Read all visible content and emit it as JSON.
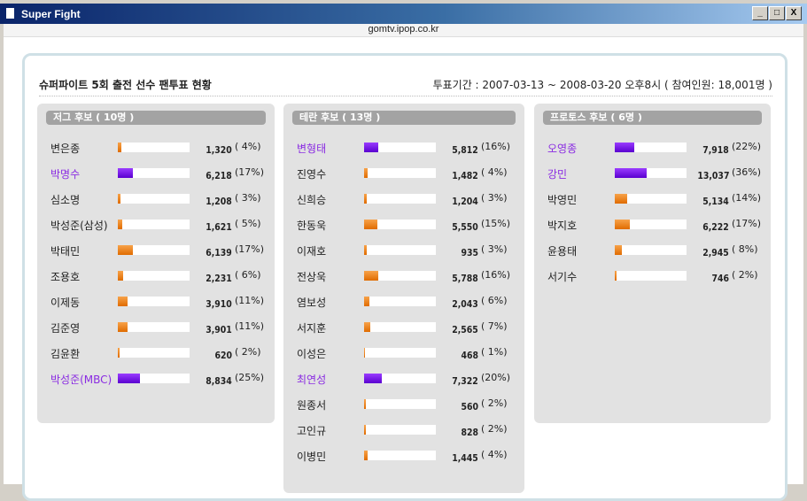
{
  "window": {
    "title": "Super Fight",
    "address": "gomtv.ipop.co.kr",
    "controls": [
      "_",
      "□",
      "X"
    ]
  },
  "heading": "슈퍼파이트 5회 출전 선수 팬투표 현황",
  "period": "투표기간 : 2007-03-13 ~ 2008-03-20 오후8시 ( 참여인원: 18,001명 )",
  "colors": {
    "highlight": "#8a2be2",
    "normal_bar": "#f08a20",
    "header_bg": "#a3a3a3"
  },
  "groups": [
    {
      "title": "저그 후보 ( 10명 )",
      "candidates": [
        {
          "name": "변은종",
          "votes": "1,320",
          "pct": 4,
          "pct_label": "( 4%)",
          "highlight": false
        },
        {
          "name": "박명수",
          "votes": "6,218",
          "pct": 17,
          "pct_label": "(17%)",
          "highlight": true
        },
        {
          "name": "심소명",
          "votes": "1,208",
          "pct": 3,
          "pct_label": "( 3%)",
          "highlight": false
        },
        {
          "name": "박성준(삼성)",
          "votes": "1,621",
          "pct": 5,
          "pct_label": "( 5%)",
          "highlight": false
        },
        {
          "name": "박태민",
          "votes": "6,139",
          "pct": 17,
          "pct_label": "(17%)",
          "highlight": false
        },
        {
          "name": "조용호",
          "votes": "2,231",
          "pct": 6,
          "pct_label": "( 6%)",
          "highlight": false
        },
        {
          "name": "이제동",
          "votes": "3,910",
          "pct": 11,
          "pct_label": "(11%)",
          "highlight": false
        },
        {
          "name": "김준영",
          "votes": "3,901",
          "pct": 11,
          "pct_label": "(11%)",
          "highlight": false
        },
        {
          "name": "김윤환",
          "votes": "620",
          "pct": 2,
          "pct_label": "( 2%)",
          "highlight": false
        },
        {
          "name": "박성준(MBC)",
          "votes": "8,834",
          "pct": 25,
          "pct_label": "(25%)",
          "highlight": true
        }
      ]
    },
    {
      "title": "테란 후보 ( 13명 )",
      "candidates": [
        {
          "name": "변형태",
          "votes": "5,812",
          "pct": 16,
          "pct_label": "(16%)",
          "highlight": true
        },
        {
          "name": "진영수",
          "votes": "1,482",
          "pct": 4,
          "pct_label": "( 4%)",
          "highlight": false
        },
        {
          "name": "신희승",
          "votes": "1,204",
          "pct": 3,
          "pct_label": "( 3%)",
          "highlight": false
        },
        {
          "name": "한동욱",
          "votes": "5,550",
          "pct": 15,
          "pct_label": "(15%)",
          "highlight": false
        },
        {
          "name": "이재호",
          "votes": "935",
          "pct": 3,
          "pct_label": "( 3%)",
          "highlight": false
        },
        {
          "name": "전상욱",
          "votes": "5,788",
          "pct": 16,
          "pct_label": "(16%)",
          "highlight": false
        },
        {
          "name": "염보성",
          "votes": "2,043",
          "pct": 6,
          "pct_label": "( 6%)",
          "highlight": false
        },
        {
          "name": "서지훈",
          "votes": "2,565",
          "pct": 7,
          "pct_label": "( 7%)",
          "highlight": false
        },
        {
          "name": "이성은",
          "votes": "468",
          "pct": 1,
          "pct_label": "( 1%)",
          "highlight": false
        },
        {
          "name": "최연성",
          "votes": "7,322",
          "pct": 20,
          "pct_label": "(20%)",
          "highlight": true
        },
        {
          "name": "원종서",
          "votes": "560",
          "pct": 2,
          "pct_label": "( 2%)",
          "highlight": false
        },
        {
          "name": "고인규",
          "votes": "828",
          "pct": 2,
          "pct_label": "( 2%)",
          "highlight": false
        },
        {
          "name": "이병민",
          "votes": "1,445",
          "pct": 4,
          "pct_label": "( 4%)",
          "highlight": false
        }
      ]
    },
    {
      "title": "프로토스 후보 ( 6명 )",
      "candidates": [
        {
          "name": "오영종",
          "votes": "7,918",
          "pct": 22,
          "pct_label": "(22%)",
          "highlight": true
        },
        {
          "name": "강민",
          "votes": "13,037",
          "pct": 36,
          "pct_label": "(36%)",
          "highlight": true
        },
        {
          "name": "박영민",
          "votes": "5,134",
          "pct": 14,
          "pct_label": "(14%)",
          "highlight": false
        },
        {
          "name": "박지호",
          "votes": "6,222",
          "pct": 17,
          "pct_label": "(17%)",
          "highlight": false
        },
        {
          "name": "윤용태",
          "votes": "2,945",
          "pct": 8,
          "pct_label": "( 8%)",
          "highlight": false
        },
        {
          "name": "서기수",
          "votes": "746",
          "pct": 2,
          "pct_label": "( 2%)",
          "highlight": false
        }
      ]
    }
  ]
}
